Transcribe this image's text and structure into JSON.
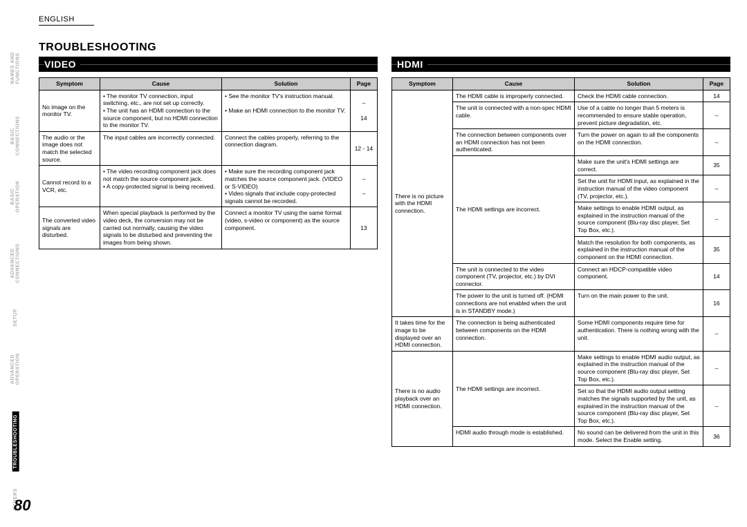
{
  "header": {
    "language": "ENGLISH",
    "pageNumber": "80",
    "title": "TROUBLESHOOTING"
  },
  "sidebar": {
    "items": [
      {
        "label": "NAMES AND\nFUNCTIONS",
        "active": false
      },
      {
        "label": "BASIC\nCONNECTIONS",
        "active": false
      },
      {
        "label": "BASIC\nOPERATION",
        "active": false
      },
      {
        "label": "ADVANCED\nCONNECTIONS",
        "active": false
      },
      {
        "label": "SETUP",
        "active": false
      },
      {
        "label": "ADVANCED\nOPERATION",
        "active": false
      },
      {
        "label": "TROUBLESHOOTING",
        "active": true
      },
      {
        "label": "OTHERS",
        "active": false
      }
    ]
  },
  "video": {
    "band": "VIDEO",
    "head": {
      "c0": "Symptom",
      "c1": "Cause",
      "c2": "Solution",
      "c3": "Page"
    },
    "rows": [
      {
        "sym": "No image on the monitor TV.",
        "cause": "• The monitor TV connection, input switching, etc., are not set up correctly.\n• The unit has an HDMI connection to the source component, but no HDMI connection to the monitor TV.",
        "sol": "• See the monitor TV's instruction manual.\n\n• Make an HDMI connection to the monitor TV.",
        "page": "–\n\n14"
      },
      {
        "sym": "The audio or the image does not match the selected source.",
        "cause": "The input cables are incorrectly connected.",
        "sol": "Connect the cables properly, referring to the connection diagram.",
        "page": "12 - 14"
      },
      {
        "sym": "Cannot record to a VCR, etc.",
        "cause": "• The video recording component jack does not match the source component jack.\n• A copy-protected signal is being received.",
        "sol": "• Make sure the recording component jack matches the source component jack. (VIDEO or S-VIDEO)\n• Video signals that include copy-protected signals cannot be recorded.",
        "page": "–\n\n–"
      },
      {
        "sym": "The converted video signals are disturbed.",
        "cause": "When special playback is performed by the video deck, the conversion may not be carried out normally, causing the video signals to be disturbed and preventing the images from being shown.",
        "sol": "Connect a monitor TV using the same format (video, s-video or component) as the source component.",
        "page": "13"
      }
    ]
  },
  "hdmi": {
    "band": "HDMI",
    "head": {
      "c0": "Symptom",
      "c1": "Cause",
      "c2": "Solution",
      "c3": "Page"
    },
    "g1": {
      "sym": "There is no picture with the HDMI connection.",
      "r1": {
        "cause": "The HDMI cable is improperly connected.",
        "sol": "Check the HDMI cable connection.",
        "page": "14"
      },
      "r2": {
        "cause": "The unit is connected with a non-spec HDMI cable.",
        "sol": "Use of a cable no longer than 5 meters is recommended to ensure stable operation, prevent picture degradation, etc.",
        "page": "–"
      },
      "r3": {
        "cause": "The connection between components over an HDMI connection has not been authenticated.",
        "sol": "Turn the power on again to all the components on the HDMI connection.",
        "page": "–"
      },
      "r4": {
        "cause": "The HDMI settings are incorrect.",
        "s4a": "Make sure the unit's HDMI settings are correct.",
        "p4a": "35",
        "s4b": "Set the unit for HDMI input, as explained in the instruction manual of the video component (TV, projector, etc.).",
        "p4b": "–",
        "s4c": "Make settings to enable HDMI output, as explained in the instruction manual of the source component (Blu-ray disc player, Set Top Box, etc.).",
        "p4c": "–",
        "s4d": "Match the resolution for both components, as explained in the instruction manual of the component on the HDMI connection.",
        "p4d": "35"
      },
      "r5": {
        "cause": "The unit is connected to the video component (TV, projector, etc.) by DVI connector.",
        "sol": "Connect an HDCP-compatible video component.",
        "page": "14"
      },
      "r6": {
        "cause": "The power to the unit is turned off. (HDMI connections are not enabled when the unit is in STANDBY mode.)",
        "sol": "Turn on the main power to the unit.",
        "page": "16"
      }
    },
    "g2": {
      "sym": "It takes time for the image to be displayed over an HDMI connection.",
      "r1": {
        "cause": "The connection is being authenticated between components on the HDMI connection.",
        "sol": "Some HDMI components require time for authentication. There is nothing wrong with the unit.",
        "page": "–"
      }
    },
    "g3": {
      "sym": "There is no audio playback over an HDMI connection.",
      "r1": {
        "cause": "The HDMI settings are incorrect.",
        "s1a": "Make settings to enable HDMI audio output, as explained in the instruction manual of the source component (Blu-ray disc player, Set Top Box, etc.).",
        "p1a": "–",
        "s1b": "Set so that the HDMI audio output setting matches the signals supported by the unit, as explained in the instruction manual of the source component (Blu-ray disc player, Set Top Box, etc.).",
        "p1b": "–"
      },
      "r2": {
        "cause": "HDMI audio through mode is established.",
        "sol": "No sound can be delivered from the unit in this mode. Select the Enable setting.",
        "page": "36"
      }
    }
  }
}
